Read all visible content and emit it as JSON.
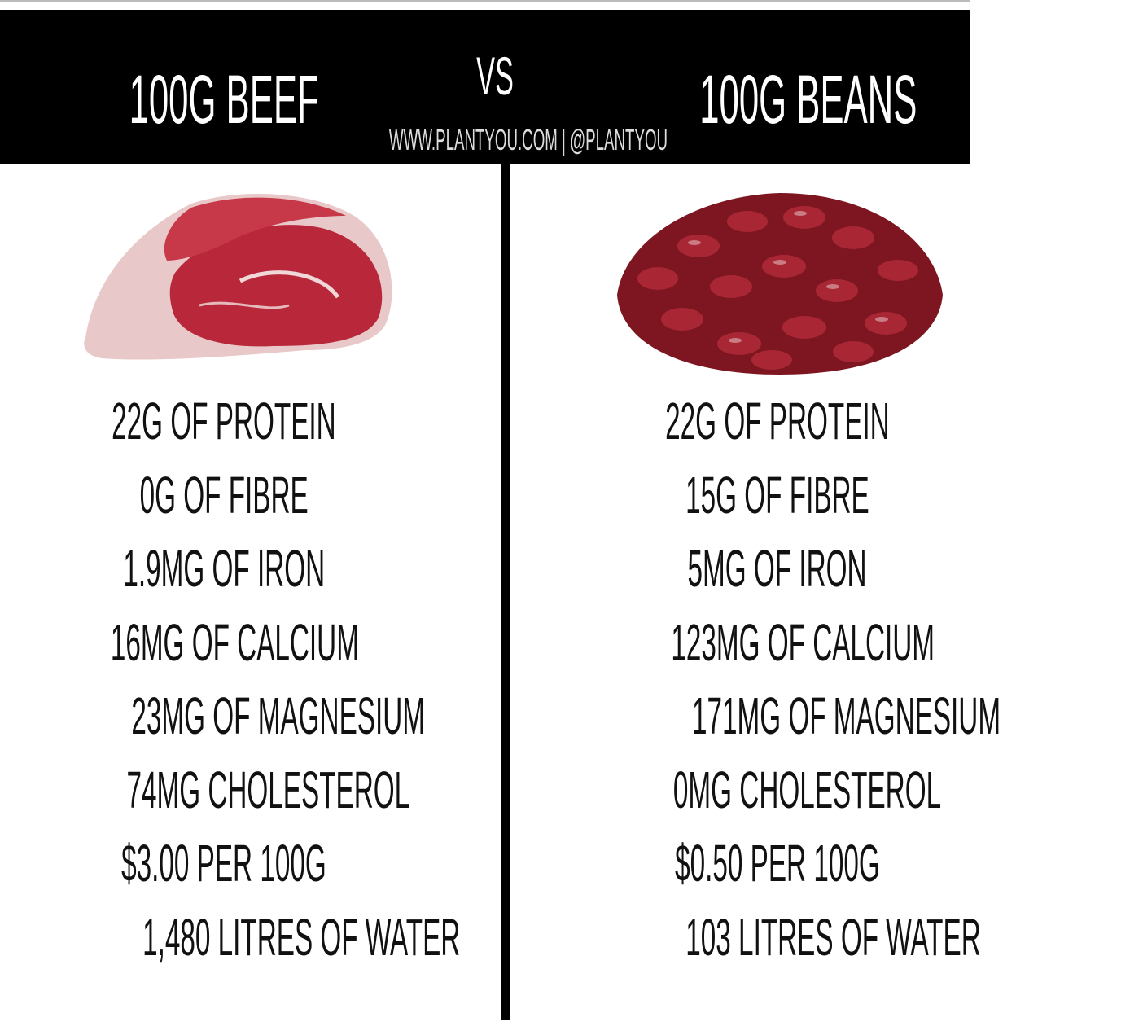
{
  "header": {
    "left_title": "100G BEEF",
    "vs": "VS",
    "right_title": "100G BEANS",
    "credit": "WWW.PLANTYOU.COM | @PLANTYOU"
  },
  "left": {
    "image": "raw-beef-steak",
    "facts": [
      "22G OF PROTEIN",
      "0G OF FIBRE",
      "1.9MG OF IRON",
      "16MG OF CALCIUM",
      "23MG OF MAGNESIUM",
      "74MG CHOLESTEROL",
      "$3.00 PER 100G",
      "1,480 LITRES OF WATER"
    ]
  },
  "right": {
    "image": "red-kidney-beans-pile",
    "facts": [
      "22G OF PROTEIN",
      "15G OF FIBRE",
      "5MG OF IRON",
      "123MG OF CALCIUM",
      "171MG OF MAGNESIUM",
      "0MG CHOLESTEROL",
      "$0.50 PER 100G",
      "103 LITRES OF WATER"
    ]
  },
  "colors": {
    "header_bg": "#000000",
    "beef": "#b8273a",
    "beans": "#8e1a26"
  }
}
